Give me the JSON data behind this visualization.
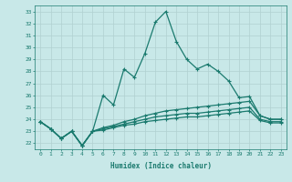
{
  "xlabel": "Humidex (Indice chaleur)",
  "background_color": "#c8e8e8",
  "grid_color": "#b0d0d0",
  "line_color": "#1a7a6e",
  "xlim": [
    -0.5,
    23.5
  ],
  "ylim": [
    21.5,
    33.5
  ],
  "xticks": [
    0,
    1,
    2,
    3,
    4,
    5,
    6,
    7,
    8,
    9,
    10,
    11,
    12,
    13,
    14,
    15,
    16,
    17,
    18,
    19,
    20,
    21,
    22,
    23
  ],
  "yticks": [
    22,
    23,
    24,
    25,
    26,
    27,
    28,
    29,
    30,
    31,
    32,
    33
  ],
  "series": [
    [
      23.8,
      23.2,
      22.4,
      23.0,
      21.8,
      23.0,
      26.0,
      25.2,
      28.2,
      27.5,
      29.5,
      32.1,
      33.0,
      30.5,
      29.0,
      28.2,
      28.6,
      28.0,
      27.2,
      25.8,
      25.9,
      24.3,
      24.0,
      24.0
    ],
    [
      23.8,
      23.2,
      22.4,
      23.0,
      21.8,
      23.0,
      23.3,
      23.5,
      23.8,
      24.0,
      24.3,
      24.5,
      24.7,
      24.8,
      24.9,
      25.0,
      25.1,
      25.2,
      25.3,
      25.4,
      25.5,
      24.3,
      24.0,
      24.0
    ],
    [
      23.8,
      23.2,
      22.4,
      23.0,
      21.8,
      23.0,
      23.2,
      23.4,
      23.6,
      23.8,
      24.0,
      24.2,
      24.3,
      24.4,
      24.5,
      24.5,
      24.6,
      24.7,
      24.8,
      24.9,
      25.0,
      24.0,
      23.8,
      23.8
    ],
    [
      23.8,
      23.2,
      22.4,
      23.0,
      21.8,
      23.0,
      23.1,
      23.3,
      23.5,
      23.6,
      23.8,
      23.9,
      24.0,
      24.1,
      24.2,
      24.2,
      24.3,
      24.4,
      24.5,
      24.6,
      24.7,
      23.9,
      23.7,
      23.7
    ]
  ]
}
